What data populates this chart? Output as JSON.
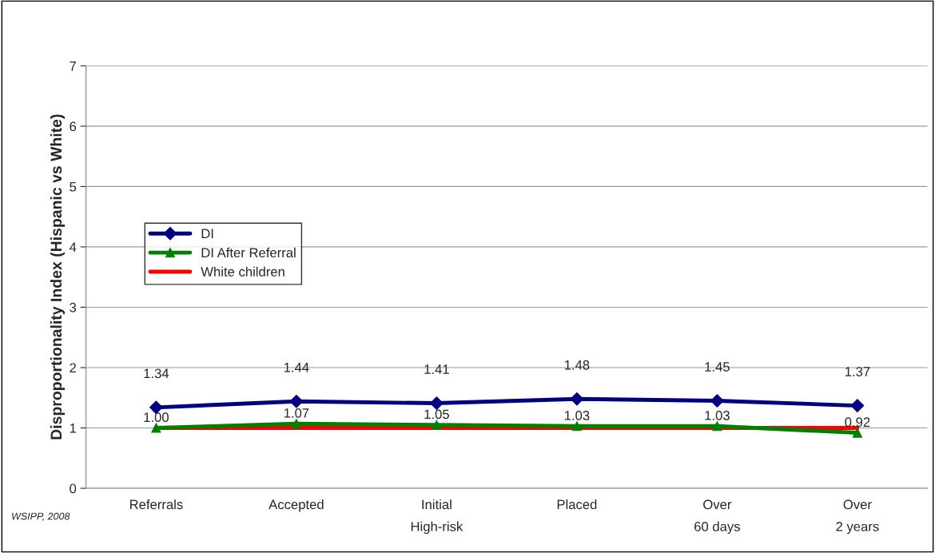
{
  "chart_data": {
    "type": "line",
    "ylabel": "Disproportionality Index (Hispanic vs White)",
    "categories": [
      "Referrals",
      "Accepted",
      "Initial\nHigh-risk",
      "Placed",
      "Over\n60 days",
      "Over\n2 years"
    ],
    "series": [
      {
        "name": "DI",
        "color": "#000080",
        "marker": "diamond",
        "values": [
          1.34,
          1.44,
          1.41,
          1.48,
          1.45,
          1.37
        ],
        "value_labels": [
          "1.34",
          "1.44",
          "1.41",
          "1.48",
          "1.45",
          "1.37"
        ]
      },
      {
        "name": "DI After Referral",
        "color": "#008000",
        "marker": "triangle",
        "values": [
          1.0,
          1.07,
          1.05,
          1.03,
          1.03,
          0.92
        ],
        "value_labels": [
          "1.00",
          "1.07",
          "1.05",
          "1.03",
          "1.03",
          "0.92"
        ]
      },
      {
        "name": "White children",
        "color": "#ff0000",
        "marker": "none",
        "values": [
          1,
          1,
          1,
          1,
          1,
          1
        ]
      }
    ],
    "ylim": [
      0,
      7
    ],
    "yticks": [
      0,
      1,
      2,
      3,
      4,
      5,
      6,
      7
    ],
    "grid": "y",
    "legend": "left",
    "annotations": [
      "WSIPP, 2008"
    ]
  }
}
